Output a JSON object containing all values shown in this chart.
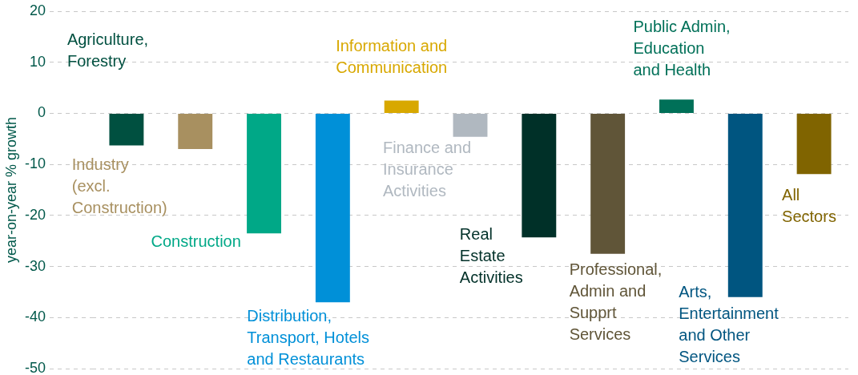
{
  "chart_data": {
    "type": "bar",
    "categories": [
      null,
      null,
      null,
      null,
      null,
      null,
      null,
      null,
      null,
      null,
      null
    ],
    "series": [
      {
        "name": "Agriculture, Forestry",
        "color": "#005040",
        "values": [
          -6.3,
          null,
          null,
          null,
          null,
          null,
          null,
          null,
          null,
          null,
          null
        ]
      },
      {
        "name": "Industry (excl. Construction)",
        "color": "#a89060",
        "values": [
          null,
          -7.0,
          null,
          null,
          null,
          null,
          null,
          null,
          null,
          null,
          null
        ]
      },
      {
        "name": "Construction",
        "color": "#00a887",
        "values": [
          null,
          null,
          -23.5,
          null,
          null,
          null,
          null,
          null,
          null,
          null,
          null
        ]
      },
      {
        "name": "Distribution, Transport, Hotels and Restaurants",
        "color": "#0090d8",
        "values": [
          null,
          null,
          null,
          -37.0,
          null,
          null,
          null,
          null,
          null,
          null,
          null
        ]
      },
      {
        "name": "Information and Communication",
        "color": "#d8a800",
        "values": [
          null,
          null,
          null,
          null,
          2.5,
          null,
          null,
          null,
          null,
          null,
          null
        ]
      },
      {
        "name": "Finance and Insurance Activities",
        "color": "#b0b8c0",
        "values": [
          null,
          null,
          null,
          null,
          null,
          -4.6,
          null,
          null,
          null,
          null,
          null
        ]
      },
      {
        "name": "Real Estate Activities",
        "color": "#003028",
        "values": [
          null,
          null,
          null,
          null,
          null,
          null,
          -24.3,
          null,
          null,
          null,
          null
        ]
      },
      {
        "name": "Professional, Admin and Supprt Services",
        "color": "#605538",
        "values": [
          null,
          null,
          null,
          null,
          null,
          null,
          null,
          -27.5,
          null,
          null,
          null
        ]
      },
      {
        "name": "Public Admin, Education and Health",
        "color": "#007058",
        "values": [
          null,
          null,
          null,
          null,
          null,
          null,
          null,
          null,
          2.7,
          null,
          null
        ]
      },
      {
        "name": "Arts, Entertainment and Other Services",
        "color": "#005580",
        "values": [
          null,
          null,
          null,
          null,
          null,
          null,
          null,
          null,
          null,
          -36.0,
          null
        ]
      },
      {
        "name": "All Sectors",
        "color": "#806400",
        "values": [
          null,
          null,
          null,
          null,
          null,
          null,
          null,
          null,
          null,
          null,
          -11.9
        ]
      }
    ],
    "ylabel": "year-on-year % growth",
    "ylim": [
      -50,
      20
    ],
    "yticks": [
      -50,
      -40,
      -30,
      -20,
      -10,
      0,
      10,
      20
    ],
    "grid": "y",
    "legend": false
  }
}
